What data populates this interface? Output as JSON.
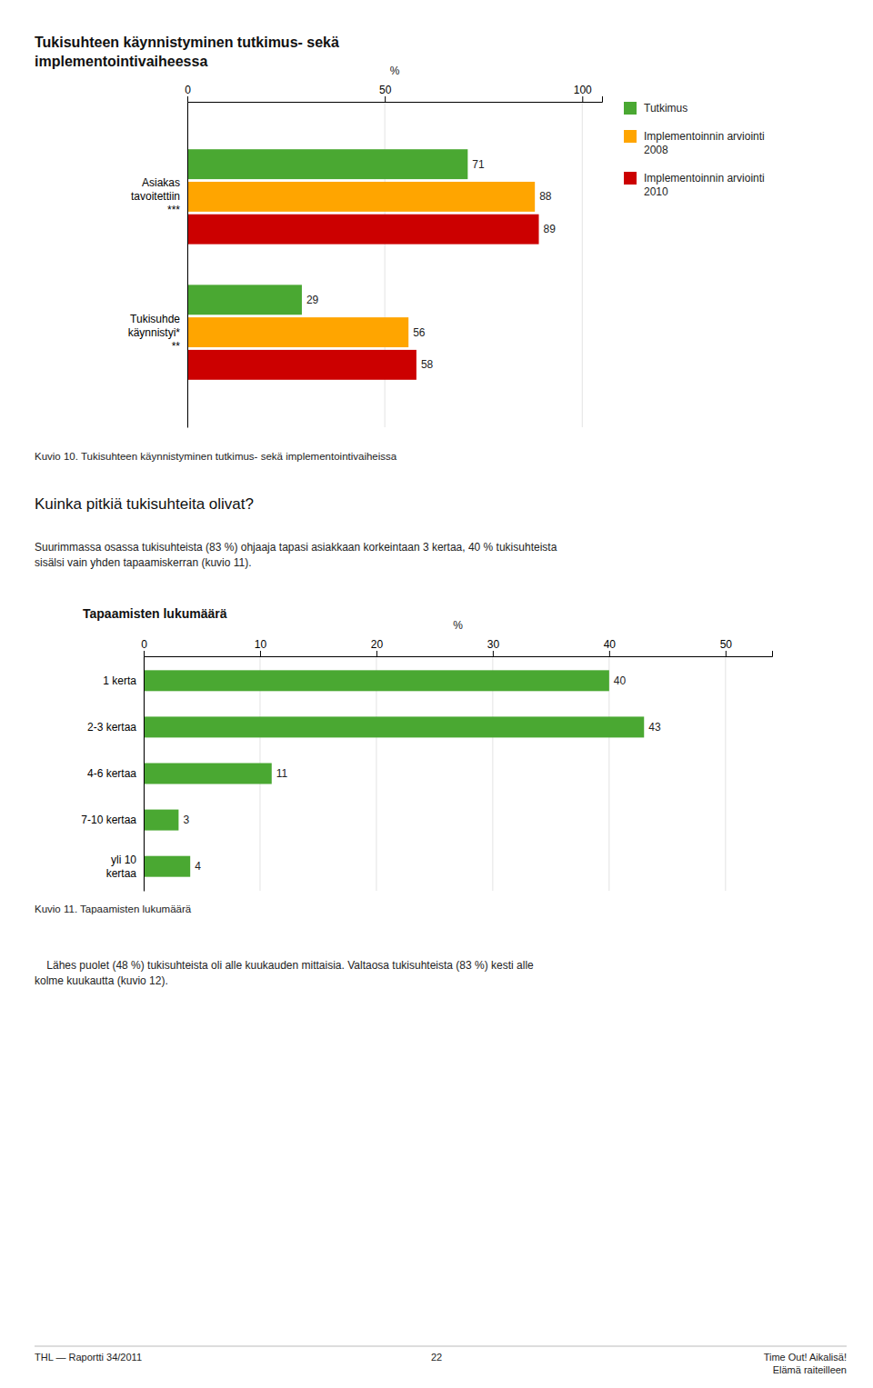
{
  "chart_data": [
    {
      "type": "bar",
      "orientation": "horizontal",
      "title": "Tukisuhteen käynnistyminen tutkimus- sekä\nimplementointivaiheessa",
      "categories": [
        "Asiakas\ntavoitettiin\n***",
        "Tukisuhde\nkäynnistyi*\n**"
      ],
      "series": [
        {
          "name": "Tutkimus",
          "color": "#4aa832",
          "values": [
            71,
            29
          ]
        },
        {
          "name": "Implementoinnin arviointi\n2008",
          "color": "#ffa500",
          "values": [
            88,
            56
          ]
        },
        {
          "name": "Implementoinnin arviointi\n2010",
          "color": "#cc0000",
          "values": [
            89,
            58
          ]
        }
      ],
      "xlim": [
        0,
        105
      ],
      "xticks": [
        0,
        50,
        100
      ],
      "x_label": "%",
      "grid": true,
      "legend": "right",
      "data_labels": true,
      "caption": "Kuvio 10. Tukisuhteen käynnistyminen tutkimus- sekä implementointivaiheissa"
    },
    {
      "type": "bar",
      "orientation": "horizontal",
      "title": "Tapaamisten lukumäärä",
      "categories": [
        "1 kerta",
        "2-3 kertaa",
        "4-6 kertaa",
        "7-10 kertaa",
        "yli 10\nkertaa"
      ],
      "values": [
        40,
        43,
        11,
        3,
        4
      ],
      "color": "#4aa832",
      "xlim": [
        0,
        54
      ],
      "xticks": [
        0,
        10,
        20,
        30,
        40,
        50
      ],
      "x_label": "%",
      "grid": true,
      "data_labels": true,
      "caption": "Kuvio 11. Tapaamisten lukumäärä"
    }
  ],
  "section_header": "Kuinka pitkiä tukisuhteita olivat?",
  "body_text1": "Suurimmassa osassa tukisuhteista (83 %) ohjaaja tapasi asiakkaan korkeintaan 3 kertaa, 40 % tukisuhteista\nsisälsi vain yhden tapaamiskerran (kuvio 11).",
  "body_text2": "    Lähes puolet (48 %) tukisuhteista oli alle kuukauden mittaisia. Valtaosa tukisuhteista (83 %) kesti alle\nkolme kuukautta (kuvio 12).",
  "footer_left": "THL — Raportti 34/2011",
  "footer_center": "22",
  "footer_right": "Time Out! Aikalisä!\nElämä raiteilleen"
}
